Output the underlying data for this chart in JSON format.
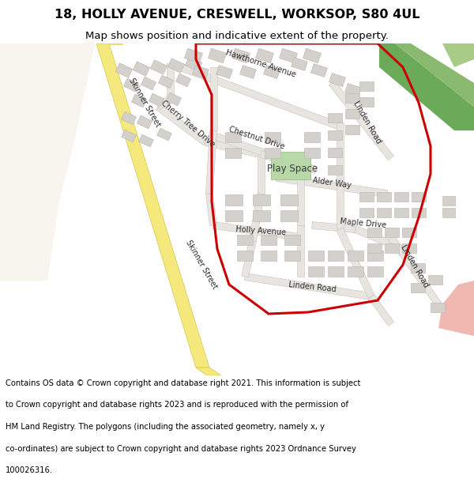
{
  "title": "18, HOLLY AVENUE, CRESWELL, WORKSOP, S80 4UL",
  "subtitle": "Map shows position and indicative extent of the property.",
  "footer_lines": [
    "Contains OS data © Crown copyright and database right 2021. This information is subject",
    "to Crown copyright and database rights 2023 and is reproduced with the permission of",
    "HM Land Registry. The polygons (including the associated geometry, namely x, y",
    "co-ordinates) are subject to Crown copyright and database rights 2023 Ordnance Survey",
    "100026316."
  ],
  "bg_color": "#ffffff",
  "map_bg": "#f7f4ef",
  "yellow_road_color": "#f5e87c",
  "yellow_road_outline": "#d4c84a",
  "road_fill": "#e8e5e0",
  "road_outline": "#c8c5c0",
  "building_color": "#d4d0cc",
  "building_outline": "#b8b5b0",
  "green_dark": "#7aaa6a",
  "green_light": "#a8cc88",
  "green_play": "#b8d8a8",
  "pink_color": "#f0b8b0",
  "red_color": "#cc0000",
  "red_lw": 2.2,
  "title_fontsize": 11.5,
  "subtitle_fontsize": 9.5,
  "footer_fontsize": 7.2,
  "label_fontsize": 7.0
}
